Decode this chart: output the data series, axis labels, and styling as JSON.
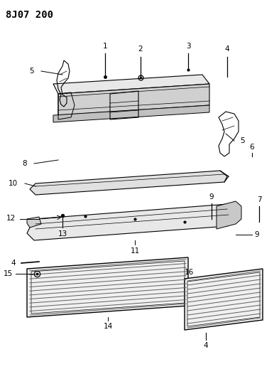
{
  "title": "8J07 200",
  "bg_color": "#ffffff",
  "fig_width": 3.93,
  "fig_height": 5.33,
  "dpi": 100,
  "label_fontsize": 7.5,
  "title_fontsize": 10
}
